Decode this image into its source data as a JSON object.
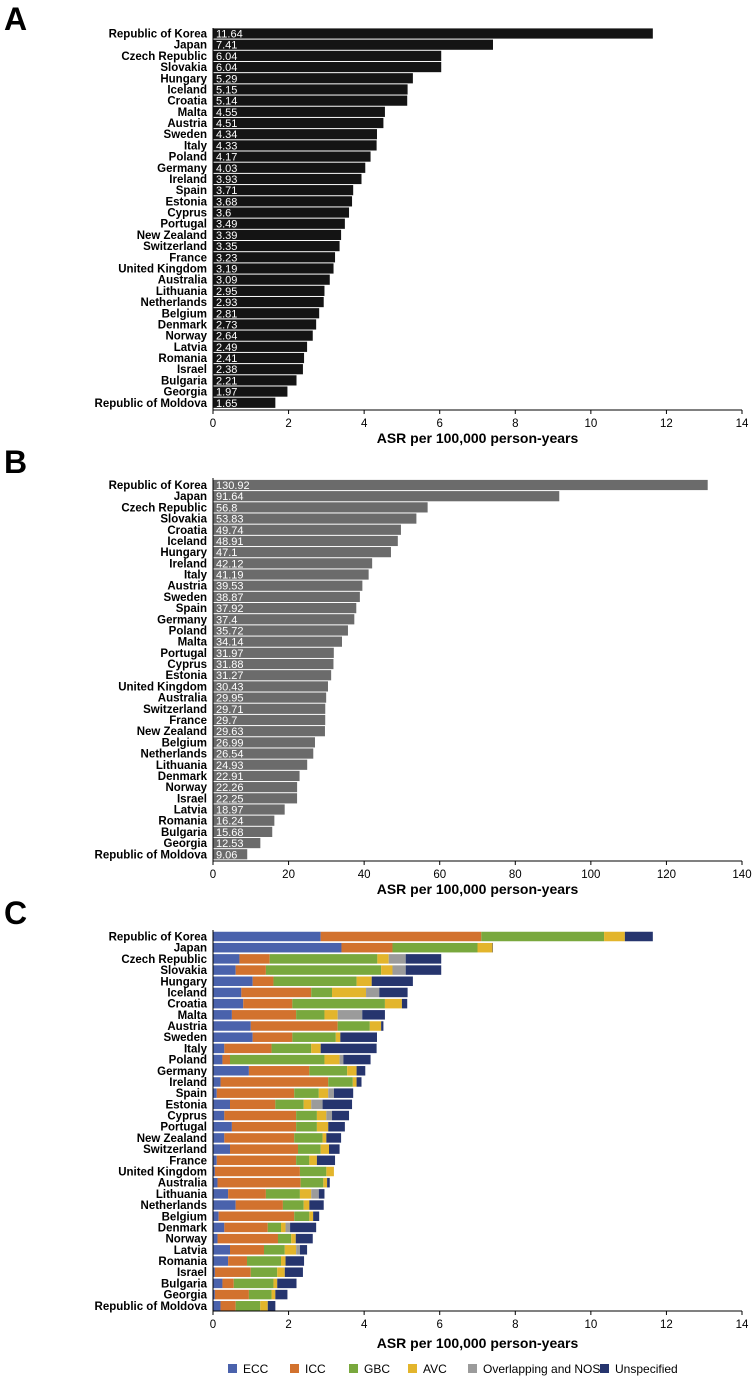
{
  "chart_data": [
    {
      "type": "bar",
      "panel": "A",
      "orientation": "horizontal",
      "categories": [
        "Republic of Korea",
        "Japan",
        "Czech Republic",
        "Slovakia",
        "Hungary",
        "Iceland",
        "Croatia",
        "Malta",
        "Austria",
        "Sweden",
        "Italy",
        "Poland",
        "Germany",
        "Ireland",
        "Spain",
        "Estonia",
        "Cyprus",
        "Portugal",
        "New Zealand",
        "Switzerland",
        "France",
        "United Kingdom",
        "Australia",
        "Lithuania",
        "Netherlands",
        "Belgium",
        "Denmark",
        "Norway",
        "Latvia",
        "Romania",
        "Israel",
        "Bulgaria",
        "Georgia",
        "Republic of Moldova"
      ],
      "values": [
        11.64,
        7.41,
        6.04,
        6.04,
        5.29,
        5.15,
        5.14,
        4.55,
        4.51,
        4.34,
        4.33,
        4.17,
        4.03,
        3.93,
        3.71,
        3.68,
        3.6,
        3.49,
        3.39,
        3.35,
        3.23,
        3.19,
        3.09,
        2.95,
        2.93,
        2.81,
        2.73,
        2.64,
        2.49,
        2.41,
        2.38,
        2.21,
        1.97,
        1.65
      ],
      "value_labels": [
        "11.64",
        "7.41",
        "6.04",
        "6.04",
        "5.29",
        "5.15",
        "5.14",
        "4.55",
        "4.51",
        "4.34",
        "4.33",
        "4.17",
        "4.03",
        "3.93",
        "3.71",
        "3.68",
        "3.6",
        "3.49",
        "3.39",
        "3.35",
        "3.23",
        "3.19",
        "3.09",
        "2.95",
        "2.93",
        "2.81",
        "2.73",
        "2.64",
        "2.49",
        "2.41",
        "2.38",
        "2.21",
        "1.97",
        "1.65"
      ],
      "xlabel": "ASR per 100,000 person-years",
      "xlim": [
        0,
        14
      ],
      "xticks": [
        "0",
        "2",
        "4",
        "6",
        "8",
        "10",
        "12",
        "14"
      ],
      "bar_color": "#141414"
    },
    {
      "type": "bar",
      "panel": "B",
      "orientation": "horizontal",
      "categories": [
        "Republic of Korea",
        "Japan",
        "Czech Republic",
        "Slovakia",
        "Croatia",
        "Iceland",
        "Hungary",
        "Ireland",
        "Italy",
        "Austria",
        "Sweden",
        "Spain",
        "Germany",
        "Poland",
        "Malta",
        "Portugal",
        "Cyprus",
        "Estonia",
        "United Kingdom",
        "Australia",
        "Switzerland",
        "France",
        "New Zealand",
        "Belgium",
        "Netherlands",
        "Lithuania",
        "Denmark",
        "Norway",
        "Israel",
        "Latvia",
        "Romania",
        "Bulgaria",
        "Georgia",
        "Republic of Moldova"
      ],
      "values": [
        130.92,
        91.64,
        56.8,
        53.83,
        49.74,
        48.91,
        47.1,
        42.12,
        41.19,
        39.53,
        38.87,
        37.92,
        37.4,
        35.72,
        34.14,
        31.97,
        31.88,
        31.27,
        30.43,
        29.95,
        29.71,
        29.7,
        29.63,
        26.99,
        26.54,
        24.93,
        22.91,
        22.26,
        22.25,
        18.97,
        16.24,
        15.68,
        12.53,
        9.06
      ],
      "value_labels": [
        "130.92",
        "91.64",
        "56.8",
        "53.83",
        "49.74",
        "48.91",
        "47.1",
        "42.12",
        "41.19",
        "39.53",
        "38.87",
        "37.92",
        "37.4",
        "35.72",
        "34.14",
        "31.97",
        "31.88",
        "31.27",
        "30.43",
        "29.95",
        "29.71",
        "29.7",
        "29.63",
        "26.99",
        "26.54",
        "24.93",
        "22.91",
        "22.26",
        "22.25",
        "18.97",
        "16.24",
        "15.68",
        "12.53",
        "9.06"
      ],
      "xlabel": "ASR per 100,000 person-years",
      "xlim": [
        0,
        140
      ],
      "xticks": [
        "0",
        "20",
        "40",
        "60",
        "80",
        "100",
        "120",
        "140"
      ],
      "bar_color": "#6b6b6b"
    },
    {
      "type": "bar",
      "stacked": true,
      "panel": "C",
      "orientation": "horizontal",
      "categories": [
        "Republic of Korea",
        "Japan",
        "Czech Republic",
        "Slovakia",
        "Hungary",
        "Iceland",
        "Croatia",
        "Malta",
        "Austria",
        "Sweden",
        "Italy",
        "Poland",
        "Germany",
        "Ireland",
        "Spain",
        "Estonia",
        "Cyprus",
        "Portugal",
        "New Zealand",
        "Switzerland",
        "France",
        "United Kingdom",
        "Australia",
        "Lithuania",
        "Netherlands",
        "Belgium",
        "Denmark",
        "Norway",
        "Latvia",
        "Romania",
        "Israel",
        "Bulgaria",
        "Georgia",
        "Republic of Moldova"
      ],
      "series": [
        {
          "name": "ECC",
          "color": "#4a62ac",
          "values": [
            2.85,
            3.4,
            0.7,
            0.6,
            1.05,
            0.75,
            0.8,
            0.5,
            1.0,
            1.05,
            0.3,
            0.25,
            0.95,
            0.2,
            0.1,
            0.45,
            0.3,
            0.5,
            0.3,
            0.45,
            0.1,
            0.05,
            0.12,
            0.4,
            0.6,
            0.15,
            0.3,
            0.12,
            0.45,
            0.4,
            0.05,
            0.25,
            0.05,
            0.2
          ]
        },
        {
          "name": "ICC",
          "color": "#d2722e",
          "values": [
            4.25,
            1.35,
            0.8,
            0.8,
            0.55,
            1.85,
            1.3,
            1.7,
            2.3,
            1.05,
            1.25,
            0.2,
            1.6,
            2.85,
            2.05,
            1.2,
            1.9,
            1.7,
            1.85,
            1.8,
            2.1,
            2.25,
            2.2,
            1.0,
            1.25,
            2.0,
            1.15,
            1.6,
            0.9,
            0.5,
            0.95,
            0.3,
            0.9,
            0.4
          ]
        },
        {
          "name": "GBC",
          "color": "#79a83d",
          "values": [
            3.25,
            2.25,
            2.85,
            3.05,
            2.2,
            0.55,
            2.45,
            0.75,
            0.85,
            1.15,
            1.05,
            2.5,
            1.0,
            0.65,
            0.65,
            0.75,
            0.55,
            0.55,
            0.75,
            0.6,
            0.35,
            0.7,
            0.6,
            0.9,
            0.55,
            0.4,
            0.35,
            0.35,
            0.55,
            0.9,
            0.7,
            1.05,
            0.6,
            0.65
          ]
        },
        {
          "name": "AVC",
          "color": "#e3b52c",
          "values": [
            0.55,
            0.4,
            0.3,
            0.3,
            0.4,
            0.9,
            0.45,
            0.35,
            0.3,
            0.12,
            0.25,
            0.4,
            0.25,
            0.1,
            0.25,
            0.2,
            0.25,
            0.3,
            0.1,
            0.22,
            0.2,
            0.2,
            0.1,
            0.3,
            0.15,
            0.1,
            0.12,
            0.12,
            0.3,
            0.12,
            0.2,
            0.1,
            0.1,
            0.2
          ]
        },
        {
          "name": "Overlapping and NOS",
          "color": "#9b9b9b",
          "values": [
            0.0,
            0.0,
            0.45,
            0.35,
            0.0,
            0.35,
            0.0,
            0.65,
            0.0,
            0.0,
            0.0,
            0.1,
            0.0,
            0.0,
            0.15,
            0.3,
            0.15,
            0.0,
            0.0,
            0.0,
            0.0,
            0.0,
            0.0,
            0.2,
            0.0,
            0.0,
            0.12,
            0.0,
            0.1,
            0.0,
            0.0,
            0.0,
            0.0,
            0.0
          ]
        },
        {
          "name": "Unspecified",
          "color": "#26356e",
          "values": [
            0.74,
            0.01,
            0.94,
            0.94,
            1.09,
            0.75,
            0.14,
            0.6,
            0.06,
            0.97,
            1.48,
            0.72,
            0.23,
            0.13,
            0.51,
            0.78,
            0.45,
            0.44,
            0.39,
            0.28,
            0.48,
            0.0,
            0.07,
            0.15,
            0.38,
            0.16,
            0.69,
            0.45,
            0.19,
            0.49,
            0.48,
            0.51,
            0.32,
            0.2
          ]
        }
      ],
      "xlabel": "ASR per 100,000 person-years",
      "xlim": [
        0,
        14
      ],
      "xticks": [
        "0",
        "2",
        "4",
        "6",
        "8",
        "10",
        "12",
        "14"
      ],
      "legend_position": "bottom"
    }
  ],
  "panels": [
    {
      "letter": "A"
    },
    {
      "letter": "B"
    },
    {
      "letter": "C"
    }
  ]
}
